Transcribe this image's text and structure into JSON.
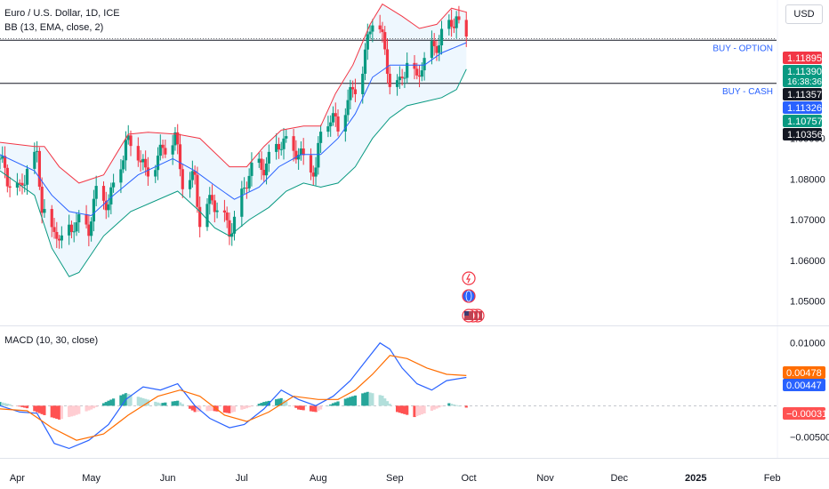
{
  "header": {
    "title": "Euro / U.S. Dollar, 1D, ICE",
    "indicator": "BB (13, EMA, close, 2)",
    "currency": "USD"
  },
  "macd_legend": "MACD (10, 30, close)",
  "colors": {
    "up": "#089981",
    "down": "#f23645",
    "bb_basis": "#2962ff",
    "bb_upper": "#f23645",
    "bb_lower": "#089981",
    "bb_fill": "#e3f2fd",
    "macd_line": "#2962ff",
    "signal_line": "#ff6d00",
    "hist_up_strong": "#26a69a",
    "hist_up_weak": "#b2dfdb",
    "hist_down_strong": "#ff5252",
    "hist_down_weak": "#ffcdd2"
  },
  "horizontal_lines": [
    {
      "label": "BUY - OPTION",
      "price": 1.1141
    },
    {
      "label": "BUY - CASH",
      "price": 1.1035
    }
  ],
  "price_badges": [
    {
      "text": "1.11895",
      "value": 1.11895,
      "bg": "#f23645",
      "color": "#ffffff"
    },
    {
      "text": "1.11390",
      "sub": "16:38:36",
      "value": 1.1139,
      "bg": "#089981",
      "color": "#ffffff"
    },
    {
      "text": "1.11357",
      "value": 1.11357,
      "bg": "#131722",
      "color": "#ffffff"
    },
    {
      "text": "1.11326",
      "value": 1.11326,
      "bg": "#2962ff",
      "color": "#ffffff"
    },
    {
      "text": "1.10757",
      "value": 1.10757,
      "bg": "#089981",
      "color": "#ffffff"
    },
    {
      "text": "1.10356",
      "value": 1.10356,
      "bg": "#131722",
      "color": "#ffffff"
    }
  ],
  "macd_badges": [
    {
      "text": "0.00478",
      "value": 0.00478,
      "bg": "#ff6d00",
      "color": "#ffffff"
    },
    {
      "text": "0.00447",
      "value": 0.00447,
      "bg": "#2962ff",
      "color": "#ffffff"
    },
    {
      "text": "−0.00031",
      "value": -0.00031,
      "bg": "#ff5252",
      "color": "#ffffff"
    }
  ],
  "event_icons": [
    "lightning-icon",
    "globe-icon",
    "us-flag-icon"
  ],
  "chart_data": {
    "type": "candlestick",
    "instrument": "Euro / U.S. Dollar",
    "interval": "1D",
    "price_axis": {
      "range": [
        1.044,
        1.124
      ],
      "ticks": [
        {
          "value": 1.09,
          "label": "1.09000"
        },
        {
          "value": 1.08,
          "label": "1.08000"
        },
        {
          "value": 1.07,
          "label": "1.07000"
        },
        {
          "value": 1.06,
          "label": "1.06000"
        },
        {
          "value": 1.05,
          "label": "1.05000"
        }
      ]
    },
    "macd_axis": {
      "range": [
        -0.0083,
        0.0125
      ],
      "ticks": [
        {
          "value": 0.01,
          "label": "0.01000"
        },
        {
          "value": 0.0,
          "label": "0.00000"
        },
        {
          "value": -0.005,
          "label": "−0.00500"
        }
      ]
    },
    "time_axis": {
      "range": [
        "2024-03-25",
        "2025-02-24"
      ],
      "ticks": [
        {
          "date": "2024-04-01",
          "label": "Apr"
        },
        {
          "date": "2024-05-01",
          "label": "May"
        },
        {
          "date": "2024-06-01",
          "label": "Jun"
        },
        {
          "date": "2024-07-01",
          "label": "Jul"
        },
        {
          "date": "2024-08-01",
          "label": "Aug"
        },
        {
          "date": "2024-09-01",
          "label": "Sep"
        },
        {
          "date": "2024-10-01",
          "label": "Oct"
        },
        {
          "date": "2024-11-01",
          "label": "Nov"
        },
        {
          "date": "2024-12-01",
          "label": "Dec"
        },
        {
          "date": "2025-01-01",
          "label": "2025",
          "bold": true
        },
        {
          "date": "2025-02-01",
          "label": "Feb"
        }
      ]
    },
    "close_path": [
      [
        "2024-03-25",
        1.085
      ],
      [
        "2024-03-28",
        1.079
      ],
      [
        "2024-04-02",
        1.077
      ],
      [
        "2024-04-05",
        1.084
      ],
      [
        "2024-04-09",
        1.086
      ],
      [
        "2024-04-11",
        1.073
      ],
      [
        "2024-04-15",
        1.065
      ],
      [
        "2024-04-17",
        1.067
      ],
      [
        "2024-04-19",
        1.065
      ],
      [
        "2024-04-24",
        1.07
      ],
      [
        "2024-04-30",
        1.067
      ],
      [
        "2024-05-03",
        1.076
      ],
      [
        "2024-05-08",
        1.075
      ],
      [
        "2024-05-15",
        1.088
      ],
      [
        "2024-05-20",
        1.086
      ],
      [
        "2024-05-23",
        1.082
      ],
      [
        "2024-05-28",
        1.086
      ],
      [
        "2024-06-04",
        1.089
      ],
      [
        "2024-06-07",
        1.08
      ],
      [
        "2024-06-12",
        1.081
      ],
      [
        "2024-06-14",
        1.07
      ],
      [
        "2024-06-19",
        1.074
      ],
      [
        "2024-06-26",
        1.068
      ],
      [
        "2024-06-28",
        1.071
      ],
      [
        "2024-07-04",
        1.081
      ],
      [
        "2024-07-10",
        1.083
      ],
      [
        "2024-07-16",
        1.09
      ],
      [
        "2024-07-19",
        1.088
      ],
      [
        "2024-07-25",
        1.085
      ],
      [
        "2024-07-31",
        1.083
      ],
      [
        "2024-08-02",
        1.092
      ],
      [
        "2024-08-05",
        1.095
      ],
      [
        "2024-08-09",
        1.092
      ],
      [
        "2024-08-14",
        1.101
      ],
      [
        "2024-08-19",
        1.108
      ],
      [
        "2024-08-23",
        1.119
      ],
      [
        "2024-08-26",
        1.116
      ],
      [
        "2024-08-30",
        1.105
      ],
      [
        "2024-09-03",
        1.104
      ],
      [
        "2024-09-06",
        1.109
      ],
      [
        "2024-09-10",
        1.103
      ],
      [
        "2024-09-12",
        1.108
      ],
      [
        "2024-09-17",
        1.113
      ],
      [
        "2024-09-20",
        1.116
      ],
      [
        "2024-09-24",
        1.118
      ],
      [
        "2024-09-26",
        1.119
      ],
      [
        "2024-09-27",
        1.116
      ],
      [
        "2024-09-30",
        1.1135
      ]
    ],
    "bb_upper": [
      [
        "2024-03-25",
        1.089
      ],
      [
        "2024-04-08",
        1.088
      ],
      [
        "2024-04-12",
        1.088
      ],
      [
        "2024-04-18",
        1.083
      ],
      [
        "2024-04-26",
        1.079
      ],
      [
        "2024-05-06",
        1.081
      ],
      [
        "2024-05-16",
        1.091
      ],
      [
        "2024-05-24",
        1.0915
      ],
      [
        "2024-06-05",
        1.091
      ],
      [
        "2024-06-14",
        1.09
      ],
      [
        "2024-06-26",
        1.083
      ],
      [
        "2024-07-03",
        1.083
      ],
      [
        "2024-07-10",
        1.088
      ],
      [
        "2024-07-17",
        1.092
      ],
      [
        "2024-07-26",
        1.093
      ],
      [
        "2024-08-02",
        1.093
      ],
      [
        "2024-08-08",
        1.101
      ],
      [
        "2024-08-15",
        1.108
      ],
      [
        "2024-08-22",
        1.118
      ],
      [
        "2024-08-27",
        1.123
      ],
      [
        "2024-09-04",
        1.12
      ],
      [
        "2024-09-11",
        1.117
      ],
      [
        "2024-09-18",
        1.118
      ],
      [
        "2024-09-24",
        1.122
      ],
      [
        "2024-09-30",
        1.121
      ]
    ],
    "bb_basis": [
      [
        "2024-03-25",
        1.086
      ],
      [
        "2024-04-08",
        1.082
      ],
      [
        "2024-04-15",
        1.076
      ],
      [
        "2024-04-22",
        1.072
      ],
      [
        "2024-05-01",
        1.071
      ],
      [
        "2024-05-10",
        1.076
      ],
      [
        "2024-05-20",
        1.081
      ],
      [
        "2024-06-03",
        1.085
      ],
      [
        "2024-06-12",
        1.082
      ],
      [
        "2024-06-21",
        1.078
      ],
      [
        "2024-06-28",
        1.075
      ],
      [
        "2024-07-08",
        1.078
      ],
      [
        "2024-07-16",
        1.083
      ],
      [
        "2024-07-25",
        1.086
      ],
      [
        "2024-08-02",
        1.086
      ],
      [
        "2024-08-09",
        1.09
      ],
      [
        "2024-08-16",
        1.096
      ],
      [
        "2024-08-23",
        1.105
      ],
      [
        "2024-08-30",
        1.108
      ],
      [
        "2024-09-06",
        1.108
      ],
      [
        "2024-09-13",
        1.108
      ],
      [
        "2024-09-20",
        1.111
      ],
      [
        "2024-09-30",
        1.1135
      ]
    ],
    "bb_lower": [
      [
        "2024-03-25",
        1.082
      ],
      [
        "2024-04-08",
        1.076
      ],
      [
        "2024-04-15",
        1.063
      ],
      [
        "2024-04-22",
        1.056
      ],
      [
        "2024-04-26",
        1.057
      ],
      [
        "2024-05-06",
        1.066
      ],
      [
        "2024-05-17",
        1.072
      ],
      [
        "2024-06-05",
        1.077
      ],
      [
        "2024-06-14",
        1.072
      ],
      [
        "2024-06-20",
        1.068
      ],
      [
        "2024-06-26",
        1.066
      ],
      [
        "2024-07-04",
        1.07
      ],
      [
        "2024-07-12",
        1.073
      ],
      [
        "2024-07-19",
        1.077
      ],
      [
        "2024-07-26",
        1.079
      ],
      [
        "2024-08-02",
        1.078
      ],
      [
        "2024-08-09",
        1.079
      ],
      [
        "2024-08-16",
        1.083
      ],
      [
        "2024-08-23",
        1.09
      ],
      [
        "2024-08-30",
        1.095
      ],
      [
        "2024-09-06",
        1.098
      ],
      [
        "2024-09-13",
        1.099
      ],
      [
        "2024-09-20",
        1.1
      ],
      [
        "2024-09-26",
        1.102
      ],
      [
        "2024-09-30",
        1.107
      ]
    ],
    "macd_line": [
      [
        "2024-03-25",
        0.0
      ],
      [
        "2024-04-02",
        -0.001
      ],
      [
        "2024-04-09",
        -0.0012
      ],
      [
        "2024-04-16",
        -0.006
      ],
      [
        "2024-04-22",
        -0.0068
      ],
      [
        "2024-04-30",
        -0.0055
      ],
      [
        "2024-05-08",
        -0.003
      ],
      [
        "2024-05-15",
        0.001
      ],
      [
        "2024-05-22",
        0.003
      ],
      [
        "2024-05-29",
        0.0025
      ],
      [
        "2024-06-05",
        0.0035
      ],
      [
        "2024-06-12",
        0.0
      ],
      [
        "2024-06-18",
        -0.002
      ],
      [
        "2024-06-26",
        -0.0035
      ],
      [
        "2024-07-02",
        -0.003
      ],
      [
        "2024-07-10",
        -0.0005
      ],
      [
        "2024-07-17",
        0.0025
      ],
      [
        "2024-07-24",
        0.001
      ],
      [
        "2024-07-31",
        0.0
      ],
      [
        "2024-08-07",
        0.0015
      ],
      [
        "2024-08-14",
        0.004
      ],
      [
        "2024-08-20",
        0.007
      ],
      [
        "2024-08-26",
        0.01
      ],
      [
        "2024-08-30",
        0.009
      ],
      [
        "2024-09-04",
        0.006
      ],
      [
        "2024-09-10",
        0.0035
      ],
      [
        "2024-09-16",
        0.0025
      ],
      [
        "2024-09-22",
        0.004
      ],
      [
        "2024-09-30",
        0.0045
      ]
    ],
    "signal_line": [
      [
        "2024-03-25",
        -0.0005
      ],
      [
        "2024-04-05",
        -0.0008
      ],
      [
        "2024-04-15",
        -0.0035
      ],
      [
        "2024-04-25",
        -0.0055
      ],
      [
        "2024-05-06",
        -0.0045
      ],
      [
        "2024-05-16",
        -0.0015
      ],
      [
        "2024-05-28",
        0.0015
      ],
      [
        "2024-06-06",
        0.0025
      ],
      [
        "2024-06-14",
        0.0015
      ],
      [
        "2024-06-24",
        -0.0015
      ],
      [
        "2024-07-03",
        -0.0025
      ],
      [
        "2024-07-12",
        -0.001
      ],
      [
        "2024-07-22",
        0.0015
      ],
      [
        "2024-08-01",
        0.001
      ],
      [
        "2024-08-09",
        0.001
      ],
      [
        "2024-08-16",
        0.0025
      ],
      [
        "2024-08-23",
        0.005
      ],
      [
        "2024-08-30",
        0.008
      ],
      [
        "2024-09-06",
        0.0075
      ],
      [
        "2024-09-14",
        0.006
      ],
      [
        "2024-09-22",
        0.005
      ],
      [
        "2024-09-30",
        0.0048
      ]
    ],
    "histogram": [
      [
        "2024-03-25",
        0.0006
      ],
      [
        "2024-04-05",
        -0.0004
      ],
      [
        "2024-04-12",
        -0.0015
      ],
      [
        "2024-04-18",
        -0.0022
      ],
      [
        "2024-04-24",
        -0.0016
      ],
      [
        "2024-05-01",
        -0.0006
      ],
      [
        "2024-05-08",
        0.0008
      ],
      [
        "2024-05-15",
        0.002
      ],
      [
        "2024-05-22",
        0.0012
      ],
      [
        "2024-05-29",
        0.0004
      ],
      [
        "2024-06-05",
        0.0008
      ],
      [
        "2024-06-12",
        -0.001
      ],
      [
        "2024-06-19",
        -0.0008
      ],
      [
        "2024-06-26",
        -0.0012
      ],
      [
        "2024-07-03",
        -0.0004
      ],
      [
        "2024-07-10",
        0.0006
      ],
      [
        "2024-07-17",
        0.0012
      ],
      [
        "2024-07-24",
        -0.0006
      ],
      [
        "2024-07-31",
        -0.001
      ],
      [
        "2024-08-07",
        0.0004
      ],
      [
        "2024-08-14",
        0.0014
      ],
      [
        "2024-08-21",
        0.0022
      ],
      [
        "2024-08-27",
        0.0016
      ],
      [
        "2024-09-02",
        -0.001
      ],
      [
        "2024-09-09",
        -0.0018
      ],
      [
        "2024-09-16",
        -0.0008
      ],
      [
        "2024-09-23",
        0.0004
      ],
      [
        "2024-09-30",
        -0.0003
      ]
    ],
    "grid": false,
    "legend_position": "top-left"
  }
}
